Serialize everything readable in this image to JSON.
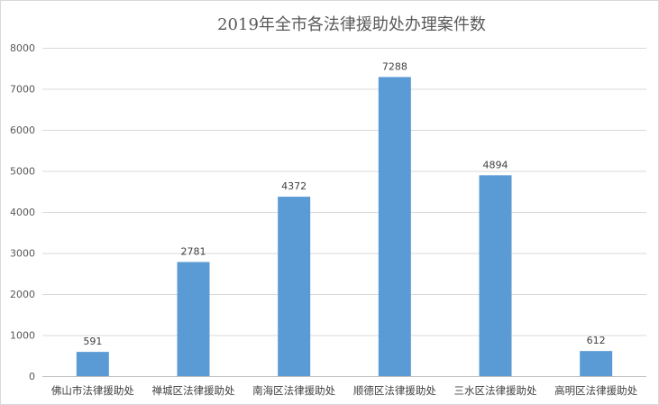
{
  "chart_data": {
    "type": "bar",
    "title": "2019年全市各法律援助处办理案件数",
    "categories": [
      "佛山市法律援助处",
      "禅城区法律援助处",
      "南海区法律援助处",
      "顺德区法律援助处",
      "三水区法律援助处",
      "高明区法律援助处"
    ],
    "series": [
      {
        "values": [
          591,
          2781,
          4372,
          7288,
          4894,
          612
        ]
      }
    ],
    "ylim": [
      0,
      8000
    ],
    "yticks": [
      0,
      1000,
      2000,
      3000,
      4000,
      5000,
      6000,
      7000,
      8000
    ],
    "grid": true,
    "legend": "none",
    "bar_color": "#5b9bd5"
  }
}
